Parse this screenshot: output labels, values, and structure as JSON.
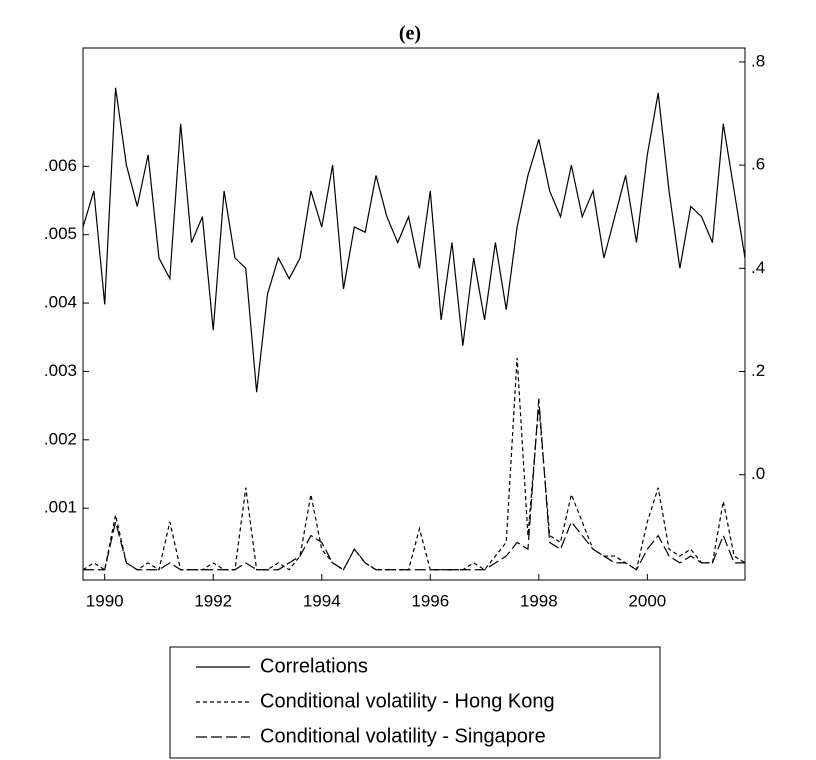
{
  "chart_data": {
    "type": "line",
    "title": "(e)",
    "x": [
      1989.6,
      1989.8,
      1990.0,
      1990.2,
      1990.4,
      1990.6,
      1990.8,
      1991.0,
      1991.2,
      1991.4,
      1991.6,
      1991.8,
      1992.0,
      1992.2,
      1992.4,
      1992.6,
      1992.8,
      1993.0,
      1993.2,
      1993.4,
      1993.6,
      1993.8,
      1994.0,
      1994.2,
      1994.4,
      1994.6,
      1994.8,
      1995.0,
      1995.2,
      1995.4,
      1995.6,
      1995.8,
      1996.0,
      1996.2,
      1996.4,
      1996.6,
      1996.8,
      1997.0,
      1997.2,
      1997.4,
      1997.6,
      1997.8,
      1998.0,
      1998.2,
      1998.4,
      1998.6,
      1998.8,
      1999.0,
      1999.2,
      1999.4,
      1999.6,
      1999.8,
      2000.0,
      2000.2,
      2000.4,
      2000.6,
      2000.8,
      2001.0,
      2001.2,
      2001.4,
      2001.6,
      2001.8
    ],
    "xlim": [
      1989.6,
      2001.8
    ],
    "xticks": [
      1990,
      1992,
      1994,
      1996,
      1998,
      2000
    ],
    "ylim": [
      -5e-05,
      0.00773
    ],
    "yticks": [
      {
        "value": 0.001,
        "label": ".001"
      },
      {
        "value": 0.002,
        "label": ".002"
      },
      {
        "value": 0.003,
        "label": ".003"
      },
      {
        "value": 0.004,
        "label": ".004"
      },
      {
        "value": 0.005,
        "label": ".005"
      },
      {
        "value": 0.006,
        "label": ".006"
      }
    ],
    "y2lim": [
      -0.204,
      0.827
    ],
    "y2ticks": [
      {
        "value": 0,
        "label": ".0"
      },
      {
        "value": 0.2,
        "label": ".2"
      },
      {
        "value": 0.4,
        "label": ".4"
      },
      {
        "value": 0.6,
        "label": ".6"
      },
      {
        "value": 0.8,
        "label": ".8"
      }
    ],
    "series": [
      {
        "name": "Correlations",
        "color": "#000000",
        "dash": "none",
        "axis": "y2",
        "values": [
          0.48,
          0.55,
          0.33,
          0.75,
          0.6,
          0.52,
          0.62,
          0.42,
          0.38,
          0.68,
          0.45,
          0.5,
          0.28,
          0.55,
          0.42,
          0.4,
          0.16,
          0.35,
          0.42,
          0.38,
          0.42,
          0.55,
          0.48,
          0.6,
          0.36,
          0.48,
          0.47,
          0.58,
          0.5,
          0.45,
          0.5,
          0.4,
          0.55,
          0.3,
          0.45,
          0.25,
          0.42,
          0.3,
          0.45,
          0.32,
          0.48,
          0.58,
          0.65,
          0.55,
          0.5,
          0.6,
          0.5,
          0.55,
          0.42,
          0.5,
          0.58,
          0.45,
          0.62,
          0.74,
          0.55,
          0.4,
          0.52,
          0.5,
          0.45,
          0.68,
          0.55,
          0.42
        ]
      },
      {
        "name": "Conditional volatility - Hong Kong",
        "color": "#000000",
        "dash": "4,3",
        "values": [
          0.0001,
          0.0002,
          0.0001,
          0.0009,
          0.0002,
          0.0001,
          0.0002,
          0.0001,
          0.0008,
          0.0001,
          0.0001,
          0.0001,
          0.0002,
          0.0001,
          0.0001,
          0.0013,
          0.0001,
          0.0001,
          0.0002,
          0.0001,
          0.0003,
          0.0012,
          0.0004,
          0.0002,
          0.0001,
          0.0004,
          0.0002,
          0.0001,
          0.0001,
          0.0001,
          0.0001,
          0.0007,
          0.0001,
          0.0001,
          0.0001,
          0.0001,
          0.0002,
          0.0001,
          0.0003,
          0.0005,
          0.0032,
          0.0006,
          0.0025,
          0.0006,
          0.0005,
          0.0012,
          0.0008,
          0.0004,
          0.0003,
          0.0003,
          0.0002,
          0.0001,
          0.0008,
          0.0013,
          0.0004,
          0.0003,
          0.0004,
          0.0002,
          0.0002,
          0.0011,
          0.0003,
          0.0002
        ]
      },
      {
        "name": "Conditional volatility - Singapore",
        "color": "#000000",
        "dash": "11,4",
        "values": [
          0.0001,
          0.0001,
          0.0001,
          0.0008,
          0.0002,
          0.0001,
          0.0001,
          0.0001,
          0.0002,
          0.0001,
          0.0001,
          0.0001,
          0.0001,
          0.0001,
          0.0001,
          0.0002,
          0.0001,
          0.0001,
          0.0001,
          0.0002,
          0.0003,
          0.0006,
          0.0005,
          0.0002,
          0.0001,
          0.0004,
          0.0002,
          0.0001,
          0.0001,
          0.0001,
          0.0001,
          0.0001,
          0.0001,
          0.0001,
          0.0001,
          0.0001,
          0.0001,
          0.0001,
          0.0002,
          0.0003,
          0.0005,
          0.0004,
          0.0026,
          0.0005,
          0.0004,
          0.0008,
          0.0006,
          0.0004,
          0.0003,
          0.0002,
          0.0002,
          0.0001,
          0.0004,
          0.0006,
          0.0003,
          0.0002,
          0.0003,
          0.0002,
          0.0002,
          0.0006,
          0.0002,
          0.0002
        ]
      }
    ]
  }
}
